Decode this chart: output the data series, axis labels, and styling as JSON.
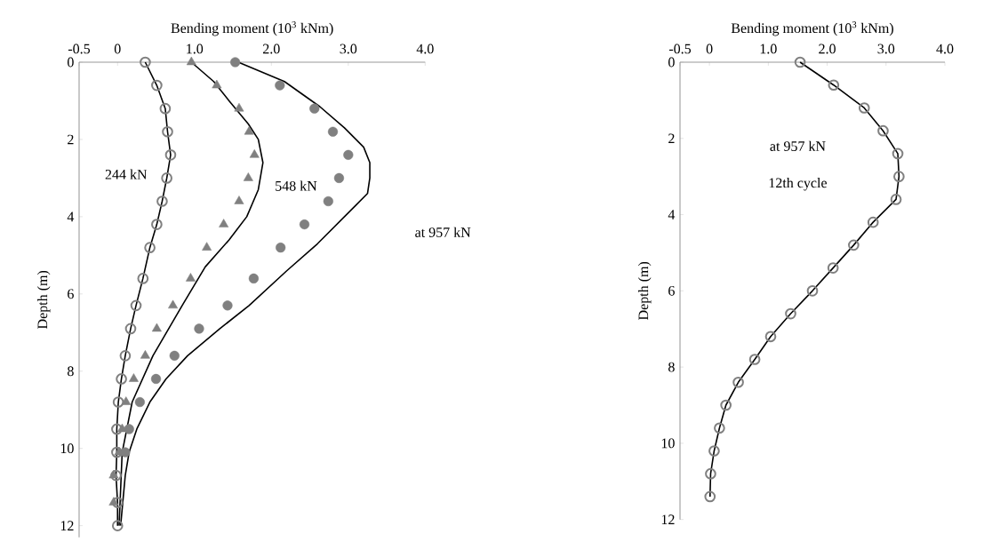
{
  "chart_data": [
    {
      "type": "line",
      "xlabel": "Bending moment (10$^{3}$ kNm)",
      "ylabel": "Depth (m)",
      "xlim": [
        -0.5,
        4.0
      ],
      "ylim": [
        12.3,
        0
      ],
      "xticks": [
        -0.5,
        0,
        {
          "value": 1,
          "label": "1.0"
        },
        {
          "value": 2,
          "label": "2.0"
        },
        {
          "value": 3,
          "label": "3.0"
        },
        {
          "value": 4,
          "label": "4.0"
        }
      ],
      "yticks": [
        0,
        2,
        4,
        6,
        8,
        10,
        12
      ],
      "series": [
        {
          "marker": "circle",
          "color": "#000000",
          "x": [
            0.36,
            0.51,
            0.62,
            0.65,
            0.69,
            0.64,
            0.58,
            0.51,
            0.42,
            0.33,
            0.24,
            0.17,
            0.1,
            0.05,
            0.01,
            -0.01,
            -0.01,
            -0.02,
            0.0,
            0.0
          ],
          "values": [
            0,
            0.6,
            1.2,
            1.8,
            2.4,
            3.0,
            3.6,
            4.2,
            4.8,
            5.6,
            6.3,
            6.9,
            7.6,
            8.2,
            8.8,
            9.5,
            10.1,
            10.7,
            11.4,
            12.0
          ]
        },
        {
          "type": "scatter",
          "marker": "triangle",
          "color": "#808080",
          "x": [
            0.96,
            1.29,
            1.58,
            1.71,
            1.78,
            1.7,
            1.58,
            1.38,
            1.16,
            0.95,
            0.72,
            0.51,
            0.36,
            0.21,
            0.11,
            0.06,
            0.02,
            -0.05,
            -0.05
          ],
          "values": [
            0,
            0.6,
            1.2,
            1.8,
            2.4,
            3.0,
            3.6,
            4.2,
            4.8,
            5.6,
            6.3,
            6.9,
            7.6,
            8.2,
            8.8,
            9.5,
            10.1,
            10.7,
            11.4
          ]
        },
        {
          "color": "#000000",
          "x": [
            0.96,
            1.25,
            1.45,
            1.7,
            1.83,
            1.89,
            1.83,
            1.68,
            1.45,
            1.14,
            0.84,
            0.46,
            0.19,
            0.06,
            0.02
          ],
          "values": [
            0,
            0.5,
            1.0,
            1.6,
            2.0,
            2.6,
            3.3,
            4.0,
            4.6,
            5.3,
            6.3,
            7.6,
            8.8,
            10.1,
            12.0
          ]
        },
        {
          "type": "scatter",
          "marker": "circle",
          "color": "#808080",
          "x": [
            1.53,
            2.11,
            2.56,
            2.8,
            3.0,
            2.88,
            2.74,
            2.43,
            2.12,
            1.77,
            1.43,
            1.06,
            0.74,
            0.5,
            0.29,
            0.15,
            0.1
          ],
          "values": [
            0,
            0.6,
            1.2,
            1.8,
            2.4,
            3.0,
            3.6,
            4.2,
            4.8,
            5.6,
            6.3,
            6.9,
            7.6,
            8.2,
            8.8,
            9.5,
            10.1
          ]
        },
        {
          "color": "#000000",
          "x": [
            1.57,
            2.17,
            2.63,
            2.95,
            3.2,
            3.28,
            3.28,
            3.25,
            3.1,
            2.95,
            2.6,
            2.2,
            1.71,
            1.33,
            0.91,
            0.63,
            0.42,
            0.25,
            0.15,
            0.1,
            0.04
          ],
          "values": [
            0,
            0.5,
            1.15,
            1.7,
            2.2,
            2.6,
            3.0,
            3.4,
            3.7,
            4.0,
            4.7,
            5.4,
            6.3,
            6.9,
            7.6,
            8.2,
            8.8,
            9.5,
            10.1,
            10.7,
            12.0
          ]
        }
      ],
      "annotations": [
        "244 kN",
        "548 kN",
        "at 957  kN"
      ]
    },
    {
      "type": "line",
      "xlabel": "Bending moment (10$^{3}$ kNm)",
      "ylabel": "Depth (m)",
      "xlim": [
        -0.5,
        4.0
      ],
      "ylim": [
        12,
        0
      ],
      "xticks": [
        -0.5,
        0,
        {
          "value": 1,
          "label": "1.0"
        },
        {
          "value": 2,
          "label": "2.0"
        },
        {
          "value": 3,
          "label": "3.0"
        },
        {
          "value": 4,
          "label": "4.0"
        }
      ],
      "yticks": [
        0,
        2,
        4,
        6,
        8,
        10,
        12
      ],
      "series": [
        {
          "marker": "circle",
          "color": "#000000",
          "x": [
            1.54,
            2.11,
            2.63,
            2.95,
            3.2,
            3.22,
            3.17,
            2.78,
            2.45,
            2.1,
            1.75,
            1.38,
            1.04,
            0.77,
            0.49,
            0.28,
            0.17,
            0.08,
            0.02,
            0.01
          ],
          "values": [
            0,
            0.6,
            1.2,
            1.8,
            2.4,
            3.0,
            3.6,
            4.2,
            4.8,
            5.4,
            6.0,
            6.6,
            7.2,
            7.8,
            8.4,
            9.0,
            9.6,
            10.2,
            10.8,
            11.4
          ]
        }
      ],
      "annotations": [
        "at 957  kN",
        "12th cycle"
      ]
    }
  ]
}
